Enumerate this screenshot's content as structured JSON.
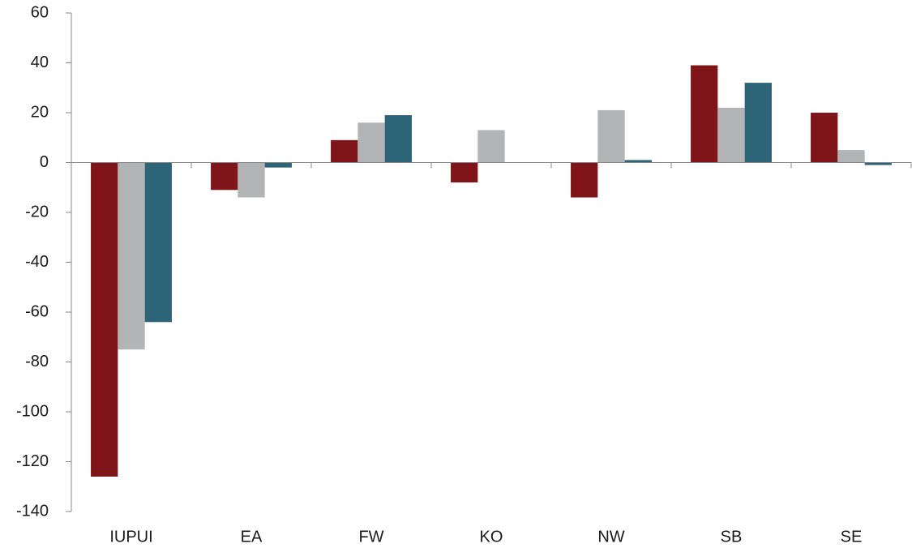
{
  "chart_data": {
    "type": "bar",
    "categories": [
      "IUPUI",
      "EA",
      "FW",
      "KO",
      "NW",
      "SB",
      "SE"
    ],
    "series": [
      {
        "color": "#7f1518",
        "values": [
          -126,
          -11,
          9,
          -8,
          -14,
          39,
          20
        ]
      },
      {
        "color": "#b3b4b6",
        "values": [
          -75,
          -14,
          16,
          13,
          21,
          22,
          5
        ]
      },
      {
        "color": "#2e6477",
        "values": [
          -64,
          -2,
          19,
          0,
          1,
          32,
          -1
        ]
      }
    ],
    "ylim": [
      -140,
      60
    ],
    "yticks": [
      -140,
      -120,
      -100,
      -80,
      -60,
      -40,
      -20,
      0,
      20,
      40,
      60
    ],
    "grid": false
  }
}
